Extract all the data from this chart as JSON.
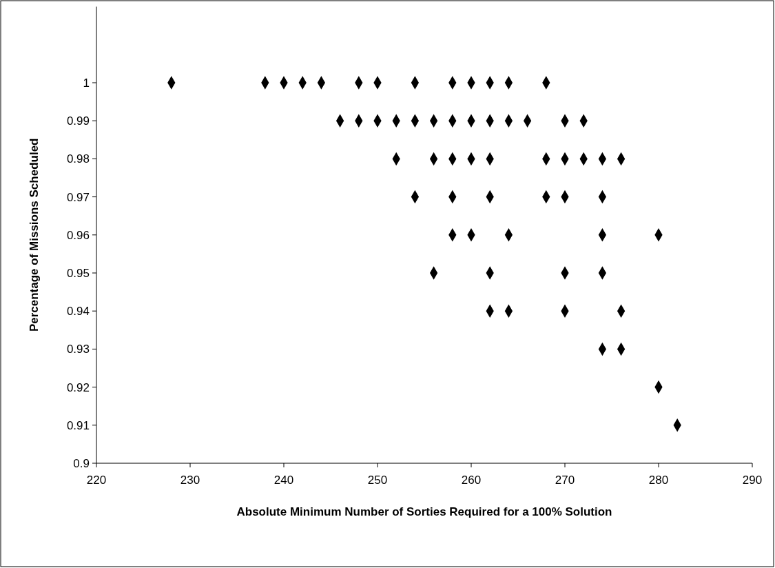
{
  "chart_data": {
    "type": "scatter",
    "xlabel": "Absolute Minimum Number of Sorties Required for a 100% Solution",
    "ylabel": "Percentage of Missions Scheduled",
    "x": [
      228,
      238,
      240,
      242,
      244,
      248,
      250,
      254,
      258,
      260,
      262,
      264,
      268,
      246,
      248,
      250,
      252,
      254,
      256,
      258,
      260,
      262,
      264,
      266,
      270,
      272,
      252,
      256,
      258,
      260,
      262,
      268,
      270,
      272,
      274,
      276,
      254,
      258,
      262,
      268,
      270,
      274,
      258,
      260,
      264,
      274,
      280,
      256,
      262,
      270,
      274,
      262,
      264,
      270,
      276,
      274,
      276,
      280,
      282
    ],
    "series": [
      {
        "color": "#000000",
        "values": [
          1,
          1,
          1,
          1,
          1,
          1,
          1,
          1,
          1,
          1,
          1,
          1,
          1,
          0.99,
          0.99,
          0.99,
          0.99,
          0.99,
          0.99,
          0.99,
          0.99,
          0.99,
          0.99,
          0.99,
          0.99,
          0.99,
          0.98,
          0.98,
          0.98,
          0.98,
          0.98,
          0.98,
          0.98,
          0.98,
          0.98,
          0.98,
          0.97,
          0.97,
          0.97,
          0.97,
          0.97,
          0.97,
          0.96,
          0.96,
          0.96,
          0.96,
          0.96,
          0.95,
          0.95,
          0.95,
          0.95,
          0.94,
          0.94,
          0.94,
          0.94,
          0.93,
          0.93,
          0.92,
          0.91
        ]
      }
    ],
    "xlim": [
      220,
      290
    ],
    "xticks": [
      220,
      230,
      240,
      250,
      260,
      270,
      280,
      290
    ],
    "ylim": [
      0.9,
      1.02
    ],
    "yticks": [
      {
        "value": 0.9,
        "label": "0.9"
      },
      {
        "value": 0.91,
        "label": "0.91"
      },
      {
        "value": 0.92,
        "label": "0.92"
      },
      {
        "value": 0.93,
        "label": "0.93"
      },
      {
        "value": 0.94,
        "label": "0.94"
      },
      {
        "value": 0.95,
        "label": "0.95"
      },
      {
        "value": 0.96,
        "label": "0.96"
      },
      {
        "value": 0.97,
        "label": "0.97"
      },
      {
        "value": 0.98,
        "label": "0.98"
      },
      {
        "value": 0.99,
        "label": "0.99"
      },
      {
        "value": 1,
        "label": "1"
      }
    ],
    "marker": "diamond",
    "grid": false
  }
}
